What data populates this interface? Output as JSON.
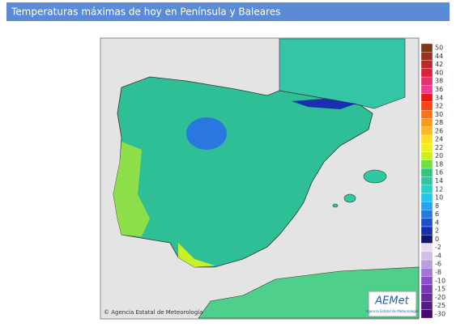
{
  "header": {
    "title": "Temperaturas máximas de hoy en Península y Baleares"
  },
  "map": {
    "copyright": "© Agencia Estatal de Meteorología",
    "logo": {
      "text": "AEMet",
      "subtitle": "Agencia Estatal de Meteorología"
    }
  },
  "legend": {
    "items": [
      {
        "value": 50,
        "color": "#7a3a1a"
      },
      {
        "value": 44,
        "color": "#a0301e"
      },
      {
        "value": 42,
        "color": "#c02828"
      },
      {
        "value": 40,
        "color": "#e0203c"
      },
      {
        "value": 38,
        "color": "#e8306c"
      },
      {
        "value": 36,
        "color": "#f03c8c"
      },
      {
        "value": 34,
        "color": "#e81818"
      },
      {
        "value": 32,
        "color": "#ff4010"
      },
      {
        "value": 30,
        "color": "#ff7010"
      },
      {
        "value": 28,
        "color": "#ff9818"
      },
      {
        "value": 26,
        "color": "#ffb820"
      },
      {
        "value": 24,
        "color": "#ffe020"
      },
      {
        "value": 22,
        "color": "#f0f020"
      },
      {
        "value": 20,
        "color": "#c8f028"
      },
      {
        "value": 18,
        "color": "#70e040"
      },
      {
        "value": 16,
        "color": "#30c878"
      },
      {
        "value": 14,
        "color": "#30c8a0"
      },
      {
        "value": 12,
        "color": "#28d0c8"
      },
      {
        "value": 10,
        "color": "#20c8f0"
      },
      {
        "value": 8,
        "color": "#28a0f0"
      },
      {
        "value": 6,
        "color": "#2878e0"
      },
      {
        "value": 4,
        "color": "#2050d0"
      },
      {
        "value": 2,
        "color": "#1830b0"
      },
      {
        "value": 0,
        "color": "#101870"
      },
      {
        "value": -2,
        "color": "#e8d8f0"
      },
      {
        "value": -4,
        "color": "#d0c0e8"
      },
      {
        "value": -6,
        "color": "#b8a0e0"
      },
      {
        "value": -8,
        "color": "#a078d8"
      },
      {
        "value": -10,
        "color": "#8850c8"
      },
      {
        "value": -15,
        "color": "#7838b8"
      },
      {
        "value": -20,
        "color": "#6828a0"
      },
      {
        "value": -25,
        "color": "#581888"
      },
      {
        "value": -30,
        "color": "#480870"
      }
    ]
  }
}
